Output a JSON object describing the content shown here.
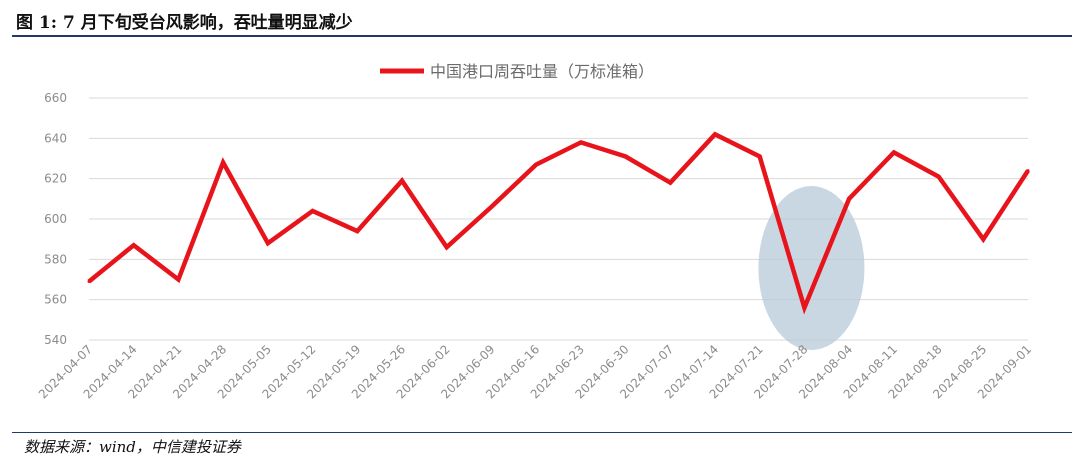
{
  "figure_title": "图 1: 7 月下旬受台风影响，吞吐量明显减少",
  "source_note": "数据来源：wind，中信建投证券",
  "colors": {
    "line": "#e8141b",
    "highlight": "#b7c9d9",
    "rule": "#1f3a6b",
    "grid": "#d9d9d9"
  },
  "chart_data": {
    "type": "line",
    "title": "",
    "xlabel": "",
    "ylabel": "",
    "ylim": [
      540,
      660
    ],
    "yticks": [
      540,
      560,
      580,
      600,
      620,
      640,
      660
    ],
    "grid": true,
    "legend_position": "top-center",
    "x": [
      "2024-04-07",
      "2024-04-14",
      "2024-04-21",
      "2024-04-28",
      "2024-05-05",
      "2024-05-12",
      "2024-05-19",
      "2024-05-26",
      "2024-06-02",
      "2024-06-09",
      "2024-06-16",
      "2024-06-23",
      "2024-06-30",
      "2024-07-07",
      "2024-07-14",
      "2024-07-21",
      "2024-07-28",
      "2024-08-04",
      "2024-08-11",
      "2024-08-18",
      "2024-08-25",
      "2024-09-01"
    ],
    "series": [
      {
        "name": "中国港口周吞吐量（万标准箱）",
        "values": [
          569,
          587,
          570,
          628,
          588,
          604,
          594,
          619,
          586,
          606,
          627,
          638,
          631,
          618,
          642,
          631,
          556,
          610,
          633,
          621,
          590,
          624
        ]
      }
    ],
    "annotations": [
      {
        "type": "ellipse-highlight",
        "x": "2024-07-28"
      }
    ]
  }
}
